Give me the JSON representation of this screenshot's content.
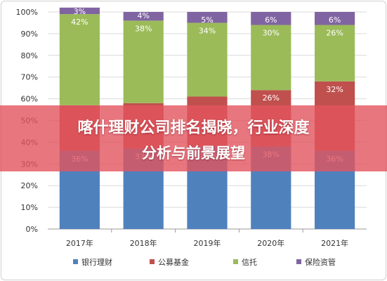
{
  "chart_data": {
    "type": "bar",
    "stacked": true,
    "categories": [
      "2017年",
      "2018年",
      "2019年",
      "2020年",
      "2021年"
    ],
    "ylim": [
      0,
      100
    ],
    "yticks": [
      "0%",
      "10%",
      "20%",
      "30%",
      "40%",
      "50%",
      "60%",
      "70%",
      "80%",
      "90%",
      "100%"
    ],
    "grid": true,
    "legend_position": "bottom",
    "series": [
      {
        "name": "银行理财",
        "color": "#4f81bd",
        "values": [
          36,
          37,
          38,
          38,
          36
        ],
        "labels": [
          "36%",
          "37%",
          "38%",
          "38%",
          "36%"
        ]
      },
      {
        "name": "公募基金",
        "color": "#c0504d",
        "values": [
          21,
          21,
          23,
          26,
          32
        ],
        "labels": [
          "",
          "",
          "",
          "26%",
          "32%"
        ]
      },
      {
        "name": "信托",
        "color": "#9bbb59",
        "values": [
          42,
          38,
          34,
          30,
          26
        ],
        "labels": [
          "42%",
          "38%",
          "34%",
          "30%",
          "26%"
        ]
      },
      {
        "name": "保险资管",
        "color": "#8064a2",
        "values": [
          3,
          4,
          5,
          6,
          6
        ],
        "labels": [
          "3%",
          "4%",
          "5%",
          "6%",
          "6%"
        ]
      }
    ]
  },
  "overlay": {
    "headline_line1": "喀什理财公司排名揭晓，行业深度",
    "headline_line2": "分析与前景展望",
    "color": "#e2545e"
  }
}
